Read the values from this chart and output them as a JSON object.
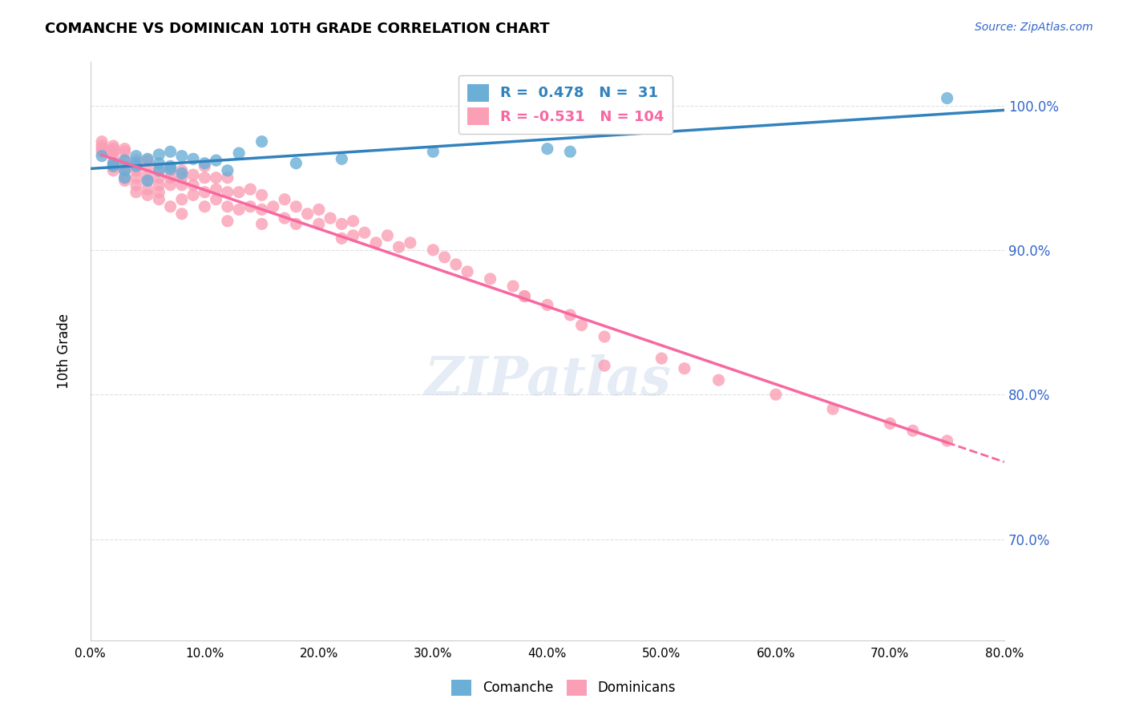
{
  "title": "COMANCHE VS DOMINICAN 10TH GRADE CORRELATION CHART",
  "source": "Source: ZipAtlas.com",
  "ylabel": "10th Grade",
  "xlim": [
    0.0,
    0.8
  ],
  "ylim": [
    0.63,
    1.03
  ],
  "legend_blue_R": "0.478",
  "legend_blue_N": "31",
  "legend_pink_R": "-0.531",
  "legend_pink_N": "104",
  "blue_color": "#6baed6",
  "pink_color": "#fa9fb5",
  "blue_line_color": "#3182bd",
  "pink_line_color": "#f768a1",
  "comanche_x": [
    0.01,
    0.02,
    0.02,
    0.03,
    0.03,
    0.03,
    0.04,
    0.04,
    0.04,
    0.05,
    0.05,
    0.06,
    0.06,
    0.06,
    0.07,
    0.07,
    0.07,
    0.08,
    0.08,
    0.09,
    0.1,
    0.11,
    0.12,
    0.13,
    0.15,
    0.18,
    0.22,
    0.3,
    0.4,
    0.42,
    0.75
  ],
  "comanche_y": [
    0.965,
    0.96,
    0.958,
    0.955,
    0.962,
    0.95,
    0.958,
    0.965,
    0.96,
    0.963,
    0.948,
    0.955,
    0.96,
    0.966,
    0.968,
    0.958,
    0.956,
    0.953,
    0.965,
    0.963,
    0.96,
    0.962,
    0.955,
    0.967,
    0.975,
    0.96,
    0.963,
    0.968,
    0.97,
    0.968,
    1.005
  ],
  "dominican_x": [
    0.01,
    0.01,
    0.01,
    0.01,
    0.02,
    0.02,
    0.02,
    0.02,
    0.02,
    0.02,
    0.02,
    0.03,
    0.03,
    0.03,
    0.03,
    0.03,
    0.03,
    0.03,
    0.04,
    0.04,
    0.04,
    0.04,
    0.04,
    0.04,
    0.05,
    0.05,
    0.05,
    0.05,
    0.05,
    0.05,
    0.06,
    0.06,
    0.06,
    0.06,
    0.06,
    0.07,
    0.07,
    0.07,
    0.07,
    0.08,
    0.08,
    0.08,
    0.08,
    0.08,
    0.09,
    0.09,
    0.09,
    0.1,
    0.1,
    0.1,
    0.1,
    0.11,
    0.11,
    0.11,
    0.12,
    0.12,
    0.12,
    0.12,
    0.13,
    0.13,
    0.14,
    0.14,
    0.15,
    0.15,
    0.15,
    0.16,
    0.17,
    0.17,
    0.18,
    0.18,
    0.19,
    0.2,
    0.2,
    0.21,
    0.22,
    0.22,
    0.23,
    0.23,
    0.24,
    0.25,
    0.26,
    0.27,
    0.28,
    0.3,
    0.31,
    0.32,
    0.33,
    0.35,
    0.37,
    0.38,
    0.4,
    0.42,
    0.43,
    0.45,
    0.5,
    0.52,
    0.55,
    0.6,
    0.65,
    0.7,
    0.72,
    0.75,
    0.38,
    0.45
  ],
  "dominican_y": [
    0.97,
    0.975,
    0.968,
    0.972,
    0.972,
    0.97,
    0.965,
    0.968,
    0.958,
    0.955,
    0.96,
    0.97,
    0.968,
    0.962,
    0.958,
    0.955,
    0.95,
    0.948,
    0.962,
    0.958,
    0.955,
    0.95,
    0.945,
    0.94,
    0.962,
    0.958,
    0.952,
    0.948,
    0.942,
    0.938,
    0.955,
    0.95,
    0.945,
    0.94,
    0.935,
    0.955,
    0.95,
    0.945,
    0.93,
    0.955,
    0.95,
    0.945,
    0.935,
    0.925,
    0.952,
    0.945,
    0.938,
    0.958,
    0.95,
    0.94,
    0.93,
    0.95,
    0.942,
    0.935,
    0.95,
    0.94,
    0.93,
    0.92,
    0.94,
    0.928,
    0.942,
    0.93,
    0.938,
    0.928,
    0.918,
    0.93,
    0.935,
    0.922,
    0.93,
    0.918,
    0.925,
    0.928,
    0.918,
    0.922,
    0.918,
    0.908,
    0.92,
    0.91,
    0.912,
    0.905,
    0.91,
    0.902,
    0.905,
    0.9,
    0.895,
    0.89,
    0.885,
    0.88,
    0.875,
    0.868,
    0.862,
    0.855,
    0.848,
    0.84,
    0.825,
    0.818,
    0.81,
    0.8,
    0.79,
    0.78,
    0.775,
    0.768,
    0.868,
    0.82
  ],
  "watermark": "ZIPatlas",
  "background_color": "#ffffff",
  "grid_color": "#e0e0e0"
}
